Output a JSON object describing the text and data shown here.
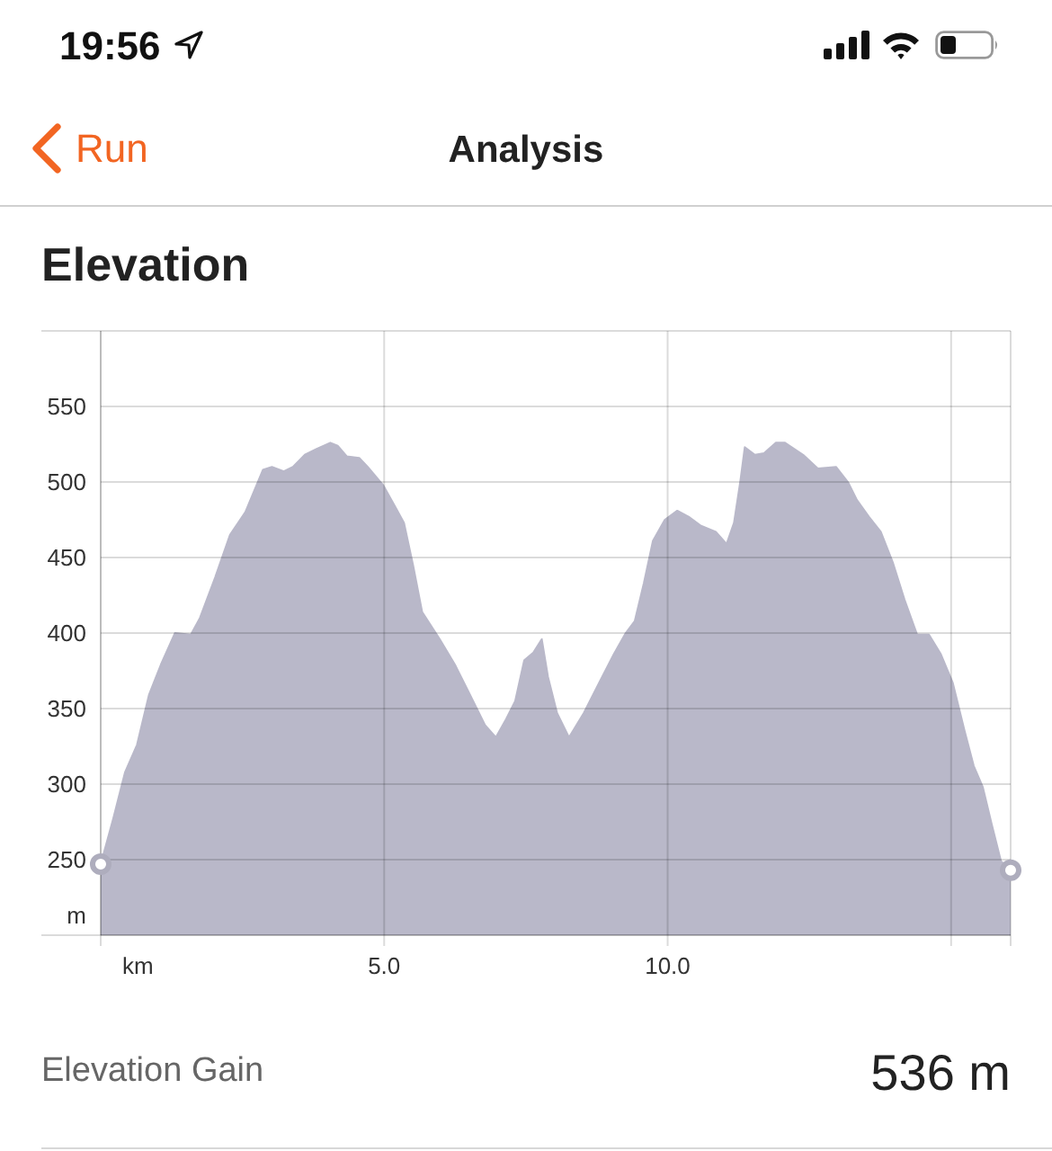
{
  "chart_data": {
    "type": "area",
    "title": "Elevation",
    "xlabel": "km",
    "ylabel": "m",
    "annotations": [
      "19:56",
      "Run",
      "Analysis",
      "Elevation Gain",
      "536 m"
    ],
    "xlim": [
      0,
      16.05
    ],
    "xticks": [
      {
        "value": 0,
        "label": null
      },
      {
        "value": 5,
        "label": "5.0"
      },
      {
        "value": 10,
        "label": "10.0"
      },
      {
        "value": 15,
        "label": null
      },
      {
        "value": 16.05,
        "label": null
      }
    ],
    "ylim": [
      200,
      600
    ],
    "yticks": [
      {
        "value": 200,
        "label": null
      },
      250,
      300,
      350,
      400,
      450,
      500,
      550,
      {
        "value": 600,
        "label": null
      }
    ],
    "grid": true,
    "series": [
      {
        "type": "area",
        "color": "#b9b8c9",
        "x": [
          0,
          0.22,
          0.43,
          0.64,
          0.85,
          1.06,
          1.31,
          1.59,
          1.75,
          2.02,
          2.28,
          2.55,
          2.86,
          3.02,
          3.23,
          3.39,
          3.6,
          3.81,
          4.05,
          4.18,
          4.34,
          4.56,
          4.71,
          4.98,
          5.19,
          5.35,
          5.51,
          5.67,
          5.98,
          6.25,
          6.57,
          6.78,
          6.97,
          7.15,
          7.31,
          7.47,
          7.63,
          7.78,
          7.89,
          8.05,
          8.26,
          8.52,
          8.79,
          9.05,
          9.26,
          9.42,
          9.58,
          9.74,
          9.95,
          10.17,
          10.37,
          10.59,
          10.85,
          11.04,
          11.17,
          11.28,
          11.36,
          11.54,
          11.7,
          11.91,
          12.07,
          12.39,
          12.65,
          12.97,
          13.18,
          13.34,
          13.55,
          13.76,
          13.97,
          14.18,
          14.4,
          14.61,
          14.82,
          15.03,
          15.24,
          15.4,
          15.56,
          15.72,
          15.88,
          16.05
        ],
        "values": [
          247,
          277,
          308,
          326,
          359,
          379,
          400,
          399,
          410,
          437,
          465,
          480,
          508,
          510,
          507,
          510,
          518,
          522,
          526,
          524,
          517,
          516,
          510,
          498,
          484,
          473,
          445,
          414,
          396,
          379,
          355,
          339,
          331,
          343,
          355,
          382,
          387,
          396,
          371,
          347,
          331,
          347,
          367,
          386,
          400,
          408,
          433,
          461,
          475,
          481,
          477,
          471,
          467,
          459,
          473,
          500,
          523,
          518,
          519,
          526,
          526,
          518,
          509,
          510,
          500,
          488,
          477,
          467,
          447,
          422,
          399,
          399,
          386,
          367,
          335,
          312,
          298,
          273,
          249,
          243
        ]
      },
      {
        "type": "scatter",
        "color": "#aeadbd",
        "marker": "circle",
        "x": [
          0,
          16.05
        ],
        "values": [
          247,
          243
        ]
      }
    ]
  }
}
